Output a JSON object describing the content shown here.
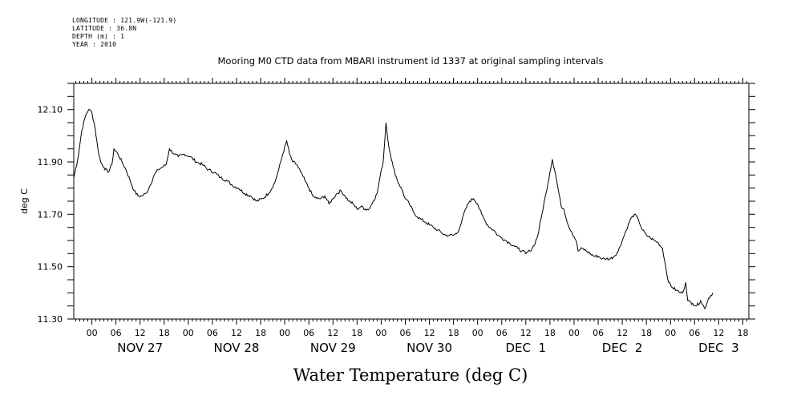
{
  "header": {
    "longitude": "LONGITUDE : 121.9W(-121.9)",
    "latitude": "LATITUDE : 36.8N",
    "depth": "DEPTH (m) : 1",
    "year": "YEAR : 2010"
  },
  "chart_data": {
    "type": "line",
    "title": "Mooring M0 CTD data from MBARI instrument id 1337 at original sampling intervals",
    "xlabel": "Water Temperature (deg C)",
    "ylabel": "deg C",
    "ylim": [
      11.3,
      12.2
    ],
    "y_ticks": [
      "11.30",
      "11.50",
      "11.70",
      "11.90",
      "12.10"
    ],
    "x_hour_labels": [
      "00",
      "06",
      "12",
      "18",
      "00",
      "06",
      "12",
      "18",
      "00",
      "06",
      "12",
      "18",
      "00",
      "06",
      "12",
      "18",
      "00",
      "06",
      "12",
      "18",
      "00",
      "06",
      "12",
      "18",
      "00",
      "06",
      "12",
      "18"
    ],
    "x_day_labels": [
      "NOV 27",
      "NOV 28",
      "NOV 29",
      "NOV 30",
      "DEC  1",
      "DEC  2",
      "DEC  3"
    ],
    "x_range_hours": [
      -4.5,
      163.5
    ],
    "grid": false,
    "series": [
      {
        "points": [
          [
            -4.5,
            11.84
          ],
          [
            -3.5,
            11.91
          ],
          [
            -2.5,
            12.02
          ],
          [
            -1.5,
            12.08
          ],
          [
            -0.8,
            12.1
          ],
          [
            0,
            12.09
          ],
          [
            0.8,
            12.03
          ],
          [
            1.5,
            11.95
          ],
          [
            2.2,
            11.9
          ],
          [
            3,
            11.88
          ],
          [
            4,
            11.86
          ],
          [
            5,
            11.89
          ],
          [
            5.5,
            11.95
          ],
          [
            6.5,
            11.93
          ],
          [
            7.5,
            11.9
          ],
          [
            8.5,
            11.87
          ],
          [
            9.5,
            11.83
          ],
          [
            10.5,
            11.79
          ],
          [
            11.5,
            11.77
          ],
          [
            12.5,
            11.77
          ],
          [
            13.5,
            11.78
          ],
          [
            14.5,
            11.81
          ],
          [
            15.5,
            11.85
          ],
          [
            16.5,
            11.87
          ],
          [
            17.5,
            11.88
          ],
          [
            18.5,
            11.89
          ],
          [
            19.3,
            11.95
          ],
          [
            20.5,
            11.93
          ],
          [
            21.5,
            11.92
          ],
          [
            23,
            11.93
          ],
          [
            24.5,
            11.92
          ],
          [
            26,
            11.9
          ],
          [
            27.5,
            11.89
          ],
          [
            29,
            11.87
          ],
          [
            30.5,
            11.86
          ],
          [
            32,
            11.84
          ],
          [
            33.5,
            11.83
          ],
          [
            35,
            11.81
          ],
          [
            36.5,
            11.8
          ],
          [
            38,
            11.78
          ],
          [
            39.5,
            11.77
          ],
          [
            41,
            11.75
          ],
          [
            42.5,
            11.76
          ],
          [
            44,
            11.78
          ],
          [
            45.5,
            11.82
          ],
          [
            46.5,
            11.87
          ],
          [
            47.5,
            11.93
          ],
          [
            48.5,
            11.98
          ],
          [
            49.2,
            11.93
          ],
          [
            50,
            11.9
          ],
          [
            51,
            11.89
          ],
          [
            52,
            11.86
          ],
          [
            53,
            11.83
          ],
          [
            54,
            11.8
          ],
          [
            55,
            11.77
          ],
          [
            56,
            11.76
          ],
          [
            57,
            11.76
          ],
          [
            58,
            11.77
          ],
          [
            59,
            11.74
          ],
          [
            60,
            11.76
          ],
          [
            61,
            11.78
          ],
          [
            62,
            11.79
          ],
          [
            63,
            11.77
          ],
          [
            64,
            11.75
          ],
          [
            65,
            11.74
          ],
          [
            66,
            11.72
          ],
          [
            67,
            11.73
          ],
          [
            68,
            11.72
          ],
          [
            69,
            11.72
          ],
          [
            70,
            11.75
          ],
          [
            71,
            11.78
          ],
          [
            71.8,
            11.85
          ],
          [
            72.5,
            11.9
          ],
          [
            73.2,
            12.05
          ],
          [
            73.7,
            11.98
          ],
          [
            74.3,
            11.93
          ],
          [
            75,
            11.88
          ],
          [
            76,
            11.83
          ],
          [
            77,
            11.8
          ],
          [
            78,
            11.76
          ],
          [
            79,
            11.74
          ],
          [
            80,
            11.71
          ],
          [
            81,
            11.69
          ],
          [
            82,
            11.68
          ],
          [
            83,
            11.67
          ],
          [
            84,
            11.66
          ],
          [
            85,
            11.65
          ],
          [
            86,
            11.64
          ],
          [
            87,
            11.63
          ],
          [
            88,
            11.62
          ],
          [
            89,
            11.62
          ],
          [
            90,
            11.62
          ],
          [
            91,
            11.63
          ],
          [
            92,
            11.67
          ],
          [
            93,
            11.72
          ],
          [
            94,
            11.75
          ],
          [
            95,
            11.76
          ],
          [
            96,
            11.74
          ],
          [
            97,
            11.7
          ],
          [
            98,
            11.67
          ],
          [
            99,
            11.65
          ],
          [
            100,
            11.64
          ],
          [
            101,
            11.62
          ],
          [
            102,
            11.61
          ],
          [
            103,
            11.6
          ],
          [
            104,
            11.59
          ],
          [
            105,
            11.58
          ],
          [
            106,
            11.57
          ],
          [
            107,
            11.56
          ],
          [
            108,
            11.55
          ],
          [
            109,
            11.56
          ],
          [
            110,
            11.58
          ],
          [
            111,
            11.62
          ],
          [
            112,
            11.7
          ],
          [
            113,
            11.78
          ],
          [
            114,
            11.86
          ],
          [
            114.6,
            11.91
          ],
          [
            115.3,
            11.86
          ],
          [
            116,
            11.8
          ],
          [
            116.8,
            11.73
          ],
          [
            117.5,
            11.72
          ],
          [
            118.5,
            11.66
          ],
          [
            119.5,
            11.63
          ],
          [
            120.5,
            11.6
          ],
          [
            121,
            11.56
          ],
          [
            122,
            11.57
          ],
          [
            123,
            11.56
          ],
          [
            124,
            11.55
          ],
          [
            125,
            11.54
          ],
          [
            126,
            11.54
          ],
          [
            127,
            11.53
          ],
          [
            128,
            11.53
          ],
          [
            129,
            11.53
          ],
          [
            130,
            11.54
          ],
          [
            131,
            11.56
          ],
          [
            132,
            11.6
          ],
          [
            133,
            11.64
          ],
          [
            134,
            11.68
          ],
          [
            135,
            11.7
          ],
          [
            136,
            11.68
          ],
          [
            137,
            11.64
          ],
          [
            138,
            11.62
          ],
          [
            139,
            11.61
          ],
          [
            140,
            11.6
          ],
          [
            141,
            11.59
          ],
          [
            142,
            11.57
          ],
          [
            142.8,
            11.5
          ],
          [
            143.5,
            11.44
          ],
          [
            144.5,
            11.42
          ],
          [
            145.5,
            11.41
          ],
          [
            146.5,
            11.4
          ],
          [
            147,
            11.4
          ],
          [
            147.8,
            11.44
          ],
          [
            148.3,
            11.37
          ],
          [
            149.5,
            11.36
          ],
          [
            150.5,
            11.35
          ],
          [
            151.5,
            11.37
          ],
          [
            152.5,
            11.34
          ],
          [
            153.5,
            11.38
          ],
          [
            154.5,
            11.4
          ]
        ]
      }
    ]
  }
}
